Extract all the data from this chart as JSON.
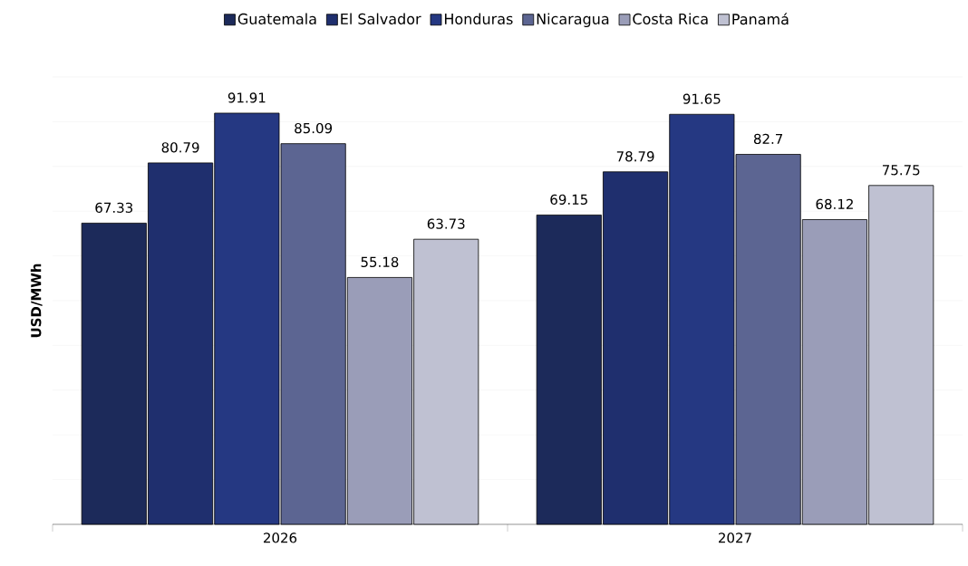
{
  "chart_data": {
    "type": "bar",
    "ylabel": "USD/MWh",
    "categories": [
      "2026",
      "2027"
    ],
    "series": [
      {
        "name": "Guatemala",
        "color": "#1c2a5a",
        "values": [
          67.33,
          69.15
        ]
      },
      {
        "name": "El Salvador",
        "color": "#1f2f6e",
        "values": [
          80.79,
          78.79
        ]
      },
      {
        "name": "Honduras",
        "color": "#253882",
        "values": [
          91.91,
          91.65
        ]
      },
      {
        "name": "Nicaragua",
        "color": "#5c6592",
        "values": [
          85.09,
          82.7
        ]
      },
      {
        "name": "Costa Rica",
        "color": "#9a9db8",
        "values": [
          55.18,
          68.12
        ]
      },
      {
        "name": "Panamá",
        "color": "#bfc1d2",
        "values": [
          63.73,
          75.75
        ]
      }
    ],
    "ylim": [
      0,
      100
    ],
    "yticks": [
      {
        "value": 0,
        "label": null
      },
      {
        "value": 10,
        "label": null
      },
      {
        "value": 20,
        "label": null
      },
      {
        "value": 30,
        "label": null
      },
      {
        "value": 40,
        "label": null
      },
      {
        "value": 50,
        "label": null
      },
      {
        "value": 60,
        "label": null
      },
      {
        "value": 70,
        "label": null
      },
      {
        "value": 80,
        "label": null
      },
      {
        "value": 90,
        "label": null
      },
      {
        "value": 100,
        "label": null
      }
    ],
    "tick_labels": "x",
    "grid": "y",
    "legend": "top",
    "data_labels": true
  }
}
